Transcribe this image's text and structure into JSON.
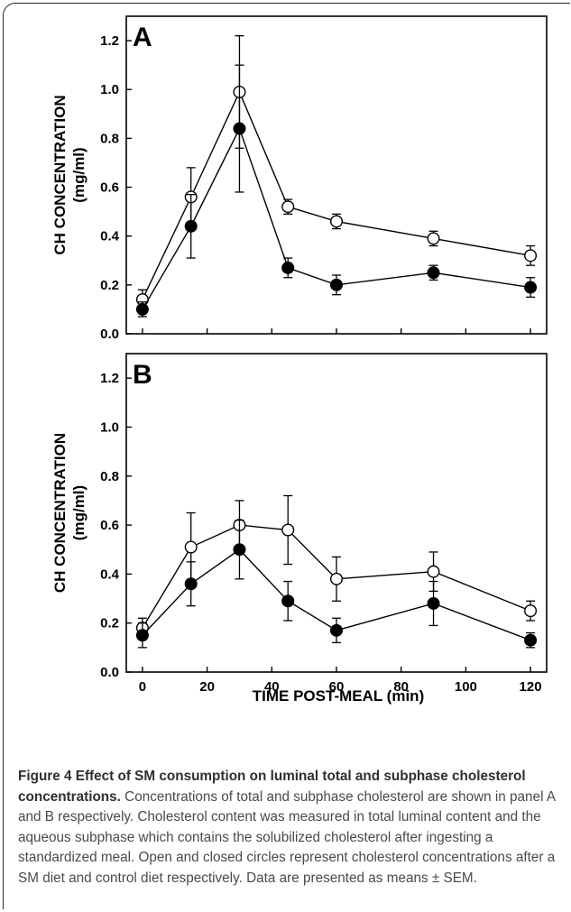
{
  "chart_data": [
    {
      "type": "scatter",
      "panel_label": "A",
      "ylabel_line1": "CH CONCENTRATION",
      "ylabel_line2": "(mg/ml)",
      "xlabel": "",
      "xlim": [
        -5,
        125
      ],
      "ylim": [
        0,
        1.3
      ],
      "x_ticks": [],
      "y_ticks": [
        "0.0",
        "0.2",
        "0.4",
        "0.6",
        "0.8",
        "1.0",
        "1.2"
      ],
      "x": [
        0,
        15,
        30,
        45,
        60,
        90,
        120
      ],
      "series": [
        {
          "marker": "open-circle",
          "values": [
            0.14,
            0.56,
            0.99,
            0.52,
            0.46,
            0.39,
            0.32
          ],
          "errors": [
            0.04,
            0.12,
            0.23,
            0.03,
            0.03,
            0.03,
            0.04
          ]
        },
        {
          "marker": "filled-circle",
          "values": [
            0.1,
            0.44,
            0.84,
            0.27,
            0.2,
            0.25,
            0.19
          ],
          "errors": [
            0.03,
            0.13,
            0.26,
            0.04,
            0.04,
            0.03,
            0.04
          ]
        }
      ]
    },
    {
      "type": "scatter",
      "panel_label": "B",
      "ylabel_line1": "CH CONCENTRATION",
      "ylabel_line2": "(mg/ml)",
      "xlabel": "TIME POST-MEAL (min)",
      "xlim": [
        -5,
        125
      ],
      "ylim": [
        0,
        1.3
      ],
      "x_ticks": [
        "0",
        "20",
        "40",
        "60",
        "80",
        "100",
        "120"
      ],
      "y_ticks": [
        "0.0",
        "0.2",
        "0.4",
        "0.6",
        "0.8",
        "1.0",
        "1.2"
      ],
      "x": [
        0,
        15,
        30,
        45,
        60,
        90,
        120
      ],
      "series": [
        {
          "marker": "open-circle",
          "values": [
            0.18,
            0.51,
            0.6,
            0.58,
            0.38,
            0.41,
            0.25
          ],
          "errors": [
            0.04,
            0.14,
            0.1,
            0.14,
            0.09,
            0.08,
            0.04
          ]
        },
        {
          "marker": "filled-circle",
          "values": [
            0.15,
            0.36,
            0.5,
            0.29,
            0.17,
            0.28,
            0.13
          ],
          "errors": [
            0.05,
            0.09,
            0.12,
            0.08,
            0.05,
            0.09,
            0.03
          ]
        }
      ]
    }
  ],
  "caption": {
    "title": "Figure 4 Effect of SM consumption on luminal total and subphase cholesterol concentrations.",
    "body": " Concentrations of total and subphase cholesterol are shown in panel A and B respectively. Cholesterol content was measured in total luminal content and the aqueous subphase which contains the solubilized cholesterol after ingesting a standardized meal. Open and closed circles represent cholesterol concentrations after a SM diet and control diet respectively. Data are presented as means ± SEM."
  }
}
